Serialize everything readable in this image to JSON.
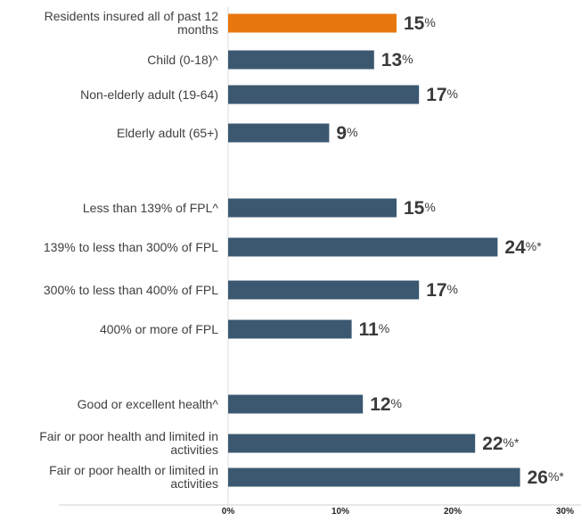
{
  "chart_data": {
    "type": "bar",
    "orientation": "horizontal",
    "title": "",
    "xlabel": "",
    "ylabel": "",
    "xlim": [
      0,
      30
    ],
    "xticks": [
      "0%",
      "10%",
      "20%",
      "30%"
    ],
    "grid": false,
    "legend": "none",
    "colors": {
      "highlight": "#E8770E",
      "bar": "#3B5870"
    },
    "bars": [
      {
        "label": "Residents insured all of past 12 months",
        "value": 15,
        "display": "15",
        "suffix": "%",
        "highlight": true
      },
      {
        "label": "Child (0-18)^",
        "value": 13,
        "display": "13",
        "suffix": "%",
        "highlight": false
      },
      {
        "label": "Non-elderly adult (19-64)",
        "value": 17,
        "display": "17",
        "suffix": "%",
        "highlight": false
      },
      {
        "label": "Elderly adult (65+)",
        "value": 9,
        "display": "9",
        "suffix": "%",
        "highlight": false
      },
      {
        "label": "Less than 139% of  FPL^",
        "value": 15,
        "display": "15",
        "suffix": "%",
        "highlight": false
      },
      {
        "label": "139% to less than 300% of FPL",
        "value": 24,
        "display": "24",
        "suffix": "%*",
        "highlight": false
      },
      {
        "label": "300% to less than 400% of FPL",
        "value": 17,
        "display": "17",
        "suffix": "%",
        "highlight": false
      },
      {
        "label": "400% or more of FPL",
        "value": 11,
        "display": "11",
        "suffix": "%",
        "highlight": false
      },
      {
        "label": "Good or excellent health^",
        "value": 12,
        "display": "12",
        "suffix": "%",
        "highlight": false
      },
      {
        "label": "Fair or poor health and limited in activities",
        "value": 22,
        "display": "22",
        "suffix": "%*",
        "highlight": false
      },
      {
        "label": "Fair or poor health or limited in activities",
        "value": 26,
        "display": "26",
        "suffix": "%*",
        "highlight": false
      }
    ]
  }
}
